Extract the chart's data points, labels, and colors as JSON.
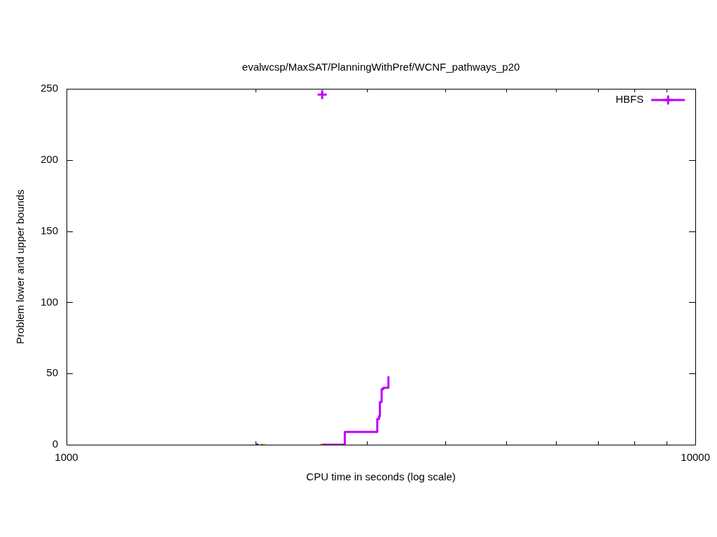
{
  "chart_data": {
    "type": "step",
    "title": "evalwcsp/MaxSAT/PlanningWithPref/WCNF_pathways_p20",
    "xlabel": "CPU time in seconds (log scale)",
    "ylabel": "Problem lower and upper bounds",
    "log": "x",
    "xlim": [
      1000,
      10000
    ],
    "xticks": [
      1000,
      {
        "value": 2000,
        "label": null
      },
      {
        "value": 3000,
        "label": null
      },
      {
        "value": 4000,
        "label": null
      },
      {
        "value": 5000,
        "label": null
      },
      {
        "value": 6000,
        "label": null
      },
      {
        "value": 7000,
        "label": null
      },
      {
        "value": 8000,
        "label": null
      },
      {
        "value": 9000,
        "label": null
      },
      10000
    ],
    "ylim": [
      0,
      250
    ],
    "yticks": [
      0,
      50,
      100,
      150,
      200,
      250
    ],
    "legend": "top right",
    "series": [
      {
        "name": "HBFS",
        "color": "#bf00ff",
        "x": [
          2550,
          2770,
          3120,
          3140,
          3150,
          3170,
          3190,
          3250
        ],
        "values": [
          0,
          9,
          18,
          20,
          30,
          39,
          40,
          48
        ]
      },
      {
        "type": "scatter",
        "marker": "cross",
        "color": "#bf00ff",
        "x": [
          2550
        ],
        "values": [
          246
        ]
      },
      {
        "type": "line",
        "color": "#1a1a8a",
        "x": [
          2000,
          2020
        ],
        "values": [
          0,
          0
        ]
      },
      {
        "type": "line",
        "color": "#2ecccc",
        "x": [
          2035,
          2055
        ],
        "values": [
          0,
          0
        ]
      },
      {
        "type": "line",
        "color": "#e8e020",
        "x": [
          2055,
          2075
        ],
        "values": [
          0,
          0
        ]
      },
      {
        "type": "line",
        "color": "#e8a020",
        "x": [
          2530,
          2550
        ],
        "values": [
          0,
          0
        ]
      }
    ]
  }
}
